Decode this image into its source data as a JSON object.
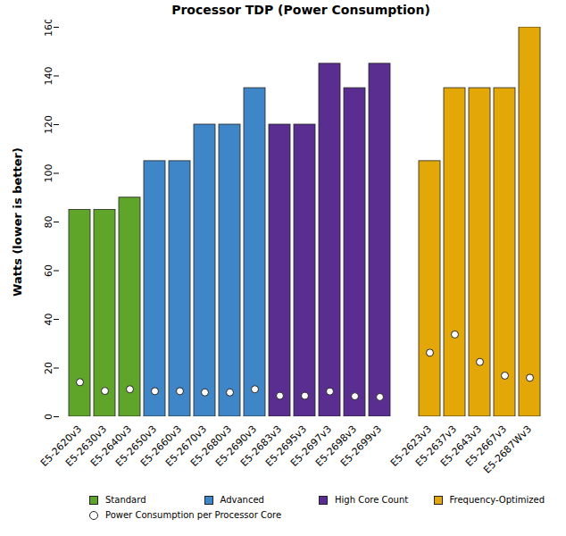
{
  "chart_data": {
    "type": "bar",
    "title": "Processor TDP (Power Consumption)",
    "y_label": "Watts (lower is better)",
    "categories": [
      "E5-2620v3",
      "E5-2630v3",
      "E5-2640v3",
      "E5-2650v3",
      "E5-2660v3",
      "E5-2670v3",
      "E5-2680v3",
      "E5-2690v3",
      "E5-2683v3",
      "E5-2695v3",
      "E5-2697v3",
      "E5-2698v3",
      "E5-2699v3",
      null,
      "E5-2623v3",
      "E5-2637v3",
      "E5-2643v3",
      "E5-2667v3",
      "E5-2687Wv3"
    ],
    "series": [
      {
        "name": "Standard",
        "type": "bar",
        "color": "#5ea52a",
        "values": [
          85,
          85,
          90,
          null,
          null,
          null,
          null,
          null,
          null,
          null,
          null,
          null,
          null,
          null,
          null,
          null,
          null,
          null,
          null
        ]
      },
      {
        "name": "Advanced",
        "type": "bar",
        "color": "#3f86c8",
        "values": [
          null,
          null,
          null,
          105,
          105,
          120,
          120,
          135,
          null,
          null,
          null,
          null,
          null,
          null,
          null,
          null,
          null,
          null,
          null
        ]
      },
      {
        "name": "High Core Count",
        "type": "bar",
        "color": "#5a2d91",
        "values": [
          null,
          null,
          null,
          null,
          null,
          null,
          null,
          null,
          120,
          120,
          145,
          135,
          145,
          null,
          null,
          null,
          null,
          null,
          null
        ]
      },
      {
        "name": "Frequency-Optimized",
        "type": "bar",
        "color": "#e3a807",
        "values": [
          null,
          null,
          null,
          null,
          null,
          null,
          null,
          null,
          null,
          null,
          null,
          null,
          null,
          null,
          105,
          135,
          135,
          135,
          160
        ]
      },
      {
        "name": "Power Consumption per Processor Core",
        "type": "scatter",
        "marker": "circle",
        "color": "#ffffff",
        "values": [
          14.2,
          10.6,
          11.3,
          10.5,
          10.5,
          10,
          10,
          11.3,
          8.6,
          8.6,
          10.4,
          8.4,
          8.1,
          null,
          26.3,
          33.8,
          22.5,
          16.9,
          16
        ]
      }
    ],
    "ylim": [
      0,
      160
    ],
    "yticks": [
      0,
      20,
      40,
      60,
      80,
      100,
      120,
      140,
      160
    ],
    "grid": false,
    "legend": "bottom"
  }
}
